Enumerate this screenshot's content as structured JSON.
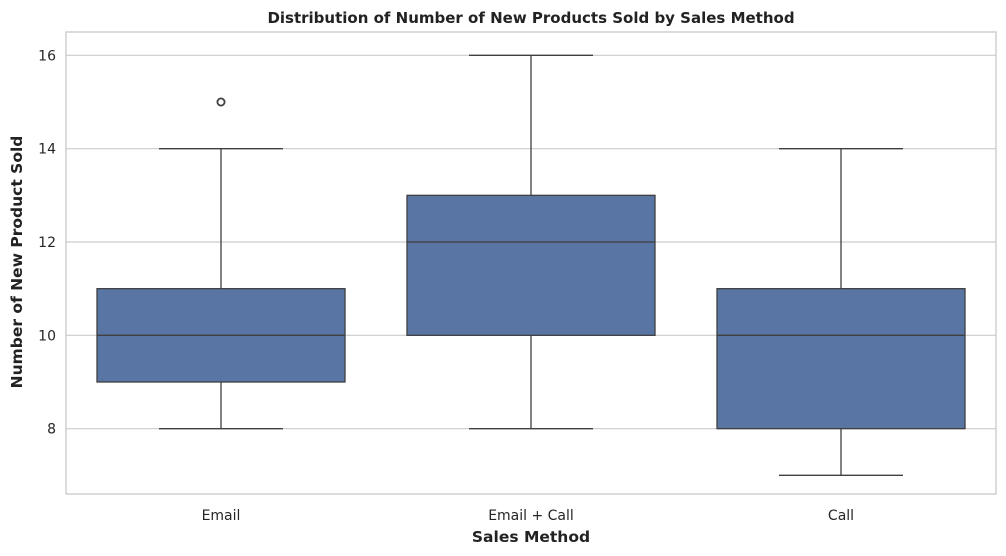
{
  "chart_data": {
    "type": "box",
    "title": "Distribution of Number of New Products Sold by Sales Method",
    "xlabel": "Sales Method",
    "ylabel": "Number of New Product Sold",
    "ylim": [
      6.6,
      16.5
    ],
    "yticks": [
      8,
      10,
      12,
      14,
      16
    ],
    "grid": true,
    "box_color": "#5975a4",
    "categories": [
      "Email",
      "Email + Call",
      "Call"
    ],
    "boxes": [
      {
        "category": "Email",
        "whisker_low": 8,
        "q1": 9,
        "median": 10,
        "q3": 11,
        "whisker_high": 14,
        "outliers": [
          15
        ]
      },
      {
        "category": "Email + Call",
        "whisker_low": 8,
        "q1": 10,
        "median": 12,
        "q3": 13,
        "whisker_high": 16,
        "outliers": []
      },
      {
        "category": "Call",
        "whisker_low": 7,
        "q1": 8,
        "median": 10,
        "q3": 11,
        "whisker_high": 14,
        "outliers": []
      }
    ]
  }
}
